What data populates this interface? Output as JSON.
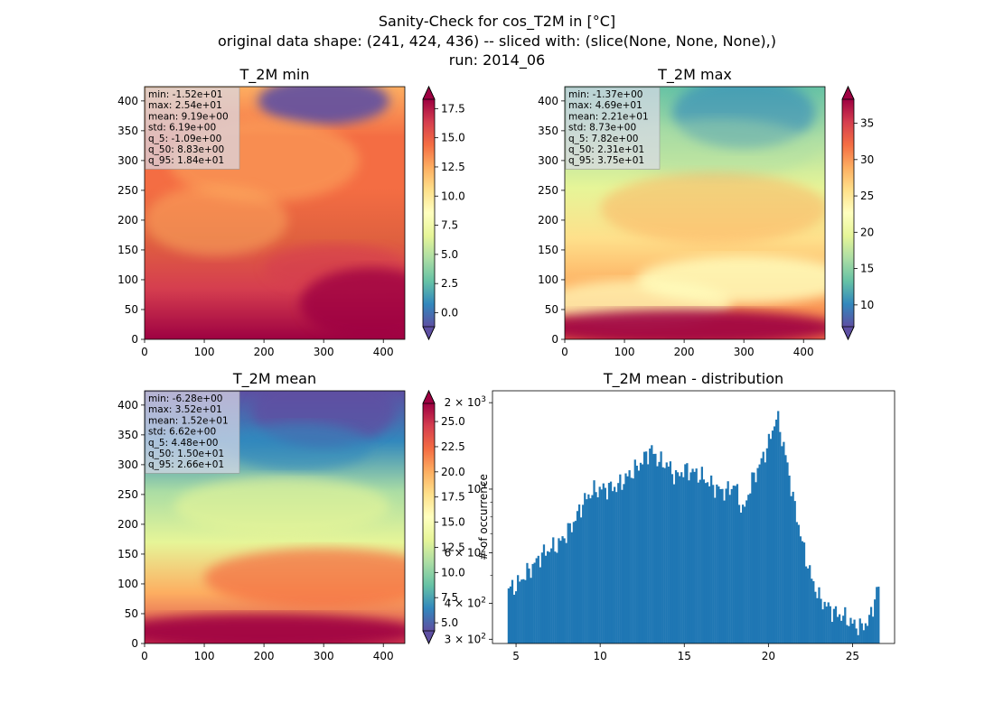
{
  "figure": {
    "title_lines": [
      "Sanity-Check for cos_T2M in [°C]",
      "original data shape: (241, 424, 436) -- sliced with: (slice(None, None, None),)",
      "run: 2014_06"
    ]
  },
  "colors": {
    "spectral_r": [
      "#5e4fa2",
      "#3288bd",
      "#66c2a5",
      "#abdda4",
      "#e6f598",
      "#ffffbf",
      "#fee08b",
      "#fdae61",
      "#f46d43",
      "#d53e4f",
      "#9e0142"
    ],
    "hist_bar": "#1f77b4",
    "stats_box_bg": "#d9d9e8"
  },
  "chart_data": [
    {
      "type": "heatmap",
      "title": "T_2M min",
      "colormap": "Spectral_r",
      "x_ticks": [
        "0",
        "100",
        "200",
        "300",
        "400"
      ],
      "y_ticks": [
        "0",
        "50",
        "100",
        "150",
        "200",
        "250",
        "300",
        "350",
        "400"
      ],
      "xlim": [
        0,
        436
      ],
      "ylim": [
        0,
        424
      ],
      "colorbar": {
        "min": -1.2,
        "max": 18.3,
        "ticks": [
          "0.0",
          "2.5",
          "5.0",
          "7.5",
          "10.0",
          "12.5",
          "15.0",
          "17.5"
        ],
        "label": ""
      },
      "stats": [
        "min: -1.52e+01",
        "max: 2.54e+01",
        "mean: 9.19e+00",
        "std: 6.19e+00",
        "q_5: -1.09e+00",
        "q_50: 8.83e+00",
        "q_95: 1.84e+01"
      ]
    },
    {
      "type": "heatmap",
      "title": "T_2M max",
      "colormap": "Spectral_r",
      "x_ticks": [
        "0",
        "100",
        "200",
        "300",
        "400"
      ],
      "y_ticks": [
        "0",
        "50",
        "100",
        "150",
        "200",
        "250",
        "300",
        "350",
        "400"
      ],
      "xlim": [
        0,
        436
      ],
      "ylim": [
        0,
        424
      ],
      "colorbar": {
        "min": 7.0,
        "max": 38.3,
        "ticks": [
          "10",
          "15",
          "20",
          "25",
          "30",
          "35"
        ],
        "label": ""
      },
      "stats": [
        "min: -1.37e+00",
        "max: 4.69e+01",
        "mean: 2.21e+01",
        "std: 8.73e+00",
        "q_5: 7.82e+00",
        "q_50: 2.31e+01",
        "q_95: 3.75e+01"
      ]
    },
    {
      "type": "heatmap",
      "title": "T_2M mean",
      "colormap": "Spectral_r",
      "x_ticks": [
        "0",
        "100",
        "200",
        "300",
        "400"
      ],
      "y_ticks": [
        "0",
        "50",
        "100",
        "150",
        "200",
        "250",
        "300",
        "350",
        "400"
      ],
      "xlim": [
        0,
        436
      ],
      "ylim": [
        0,
        424
      ],
      "colorbar": {
        "min": 4.2,
        "max": 26.8,
        "ticks": [
          "5.0",
          "7.5",
          "10.0",
          "12.5",
          "15.0",
          "17.5",
          "20.0",
          "22.5",
          "25.0"
        ],
        "label": "# of occurrence"
      },
      "stats": [
        "min: -6.28e+00",
        "max: 3.52e+01",
        "mean: 1.52e+01",
        "std: 6.62e+00",
        "q_5: 4.48e+00",
        "q_50: 1.50e+01",
        "q_95: 2.66e+01"
      ]
    },
    {
      "type": "bar",
      "title": "T_2M mean - distribution",
      "y_scale": "log",
      "xlim": [
        3.6,
        27.5
      ],
      "ylim": [
        290,
        2200
      ],
      "x_ticks": [
        5,
        10,
        15,
        20,
        25
      ],
      "y_major_ticks": [
        {
          "value": 300,
          "base": "3 × 10",
          "exp": "2"
        },
        {
          "value": 400,
          "base": "4 × 10",
          "exp": "2"
        },
        {
          "value": 600,
          "base": "6 × 10",
          "exp": "2"
        },
        {
          "value": 1000,
          "base": "10",
          "exp": "3"
        },
        {
          "value": 2000,
          "base": "2 × 10",
          "exp": "3"
        }
      ],
      "y_minor_ticks": [
        500,
        700,
        800,
        900
      ],
      "x_anchors": [
        4.5,
        5.0,
        5.5,
        6.0,
        6.5,
        7.0,
        7.5,
        8.0,
        8.5,
        9.0,
        9.5,
        10.0,
        10.5,
        11.0,
        11.5,
        12.0,
        12.5,
        13.0,
        13.5,
        14.0,
        14.5,
        15.0,
        15.5,
        16.0,
        16.5,
        17.0,
        17.5,
        18.0,
        18.5,
        19.0,
        19.5,
        20.0,
        20.5,
        21.0,
        21.5,
        22.0,
        22.5,
        23.0,
        23.5,
        24.0,
        24.5,
        25.0,
        25.5,
        26.0,
        26.6
      ],
      "count_anchors": [
        450,
        460,
        500,
        540,
        590,
        620,
        640,
        700,
        780,
        900,
        980,
        1000,
        1010,
        1020,
        1090,
        1160,
        1250,
        1380,
        1250,
        1220,
        1100,
        1170,
        1150,
        1110,
        1050,
        1000,
        980,
        1040,
        820,
        1060,
        1220,
        1430,
        1800,
        1320,
        900,
        650,
        500,
        420,
        390,
        370,
        360,
        340,
        330,
        350,
        470
      ]
    }
  ]
}
